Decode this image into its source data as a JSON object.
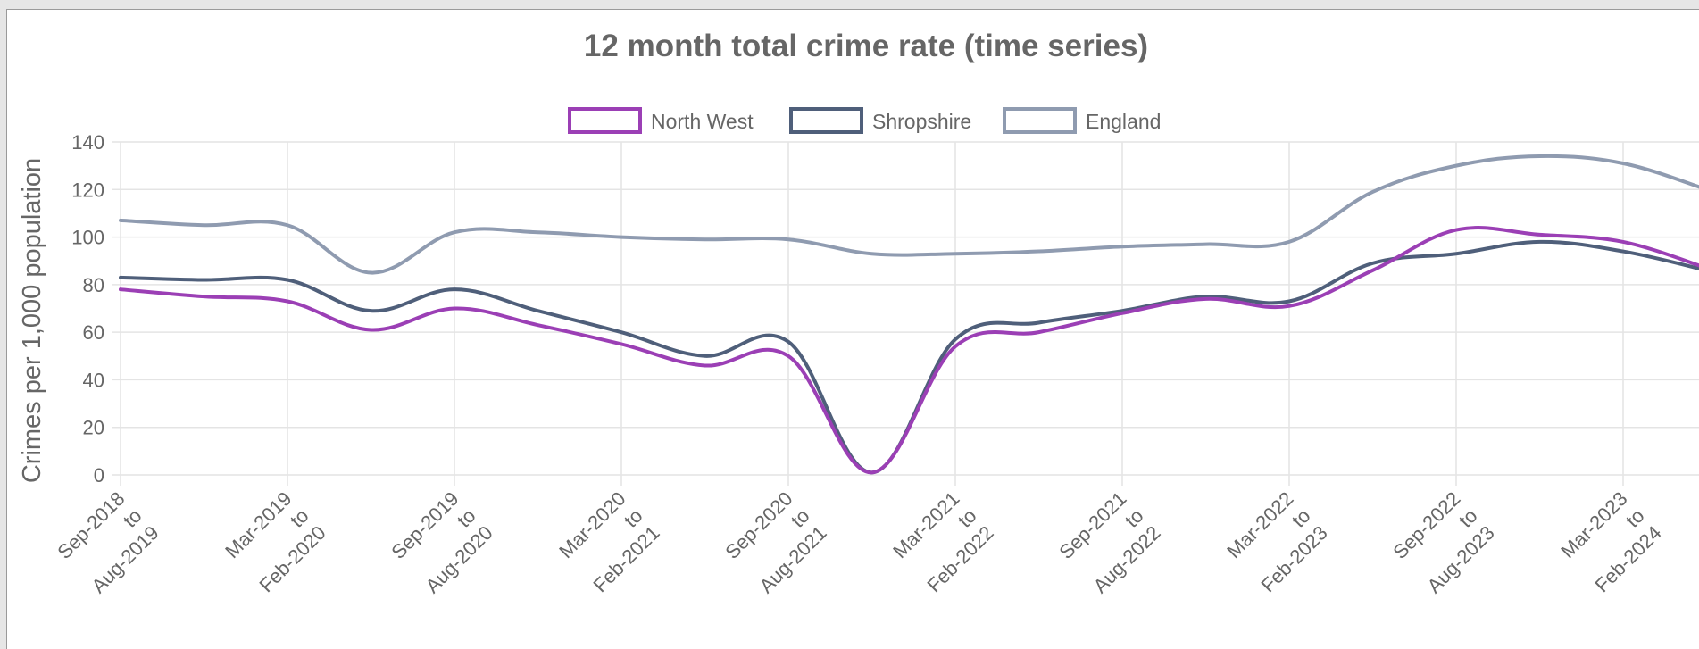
{
  "chart_data": {
    "type": "line",
    "title": "12 month total crime rate (time series)",
    "ylabel": "Crimes per 1,000 population",
    "xlabel": "",
    "ylim": [
      0,
      140
    ],
    "yticks": [
      0,
      20,
      40,
      60,
      80,
      100,
      120,
      140
    ],
    "grid": true,
    "legend_position": "top-center",
    "x_tick_labels": [
      [
        "Sep-2018",
        "to",
        "Aug-2019"
      ],
      [
        "Mar-2019",
        "to",
        "Feb-2020"
      ],
      [
        "Sep-2019",
        "to",
        "Aug-2020"
      ],
      [
        "Mar-2020",
        "to",
        "Feb-2021"
      ],
      [
        "Sep-2020",
        "to",
        "Aug-2021"
      ],
      [
        "Mar-2021",
        "to",
        "Feb-2022"
      ],
      [
        "Sep-2021",
        "to",
        "Aug-2022"
      ],
      [
        "Mar-2022",
        "to",
        "Feb-2023"
      ],
      [
        "Sep-2022",
        "to",
        "Aug-2023"
      ],
      [
        "Mar-2023",
        "to",
        "Feb-2024"
      ]
    ],
    "series": [
      {
        "name": "North West",
        "color": "#9b3fb5",
        "values": [
          78,
          75,
          73,
          61,
          70,
          63,
          55,
          46,
          50,
          1,
          54,
          60,
          68,
          74,
          71,
          86,
          103,
          101,
          98,
          87
        ]
      },
      {
        "name": "Shropshire",
        "color": "#4f5f7a",
        "values": [
          83,
          82,
          82,
          69,
          78,
          69,
          60,
          50,
          56,
          1,
          57,
          64,
          69,
          75,
          73,
          89,
          93,
          98,
          94,
          86
        ]
      },
      {
        "name": "England",
        "color": "#8f9bb0",
        "values": [
          107,
          105,
          105,
          85,
          102,
          102,
          100,
          99,
          99,
          93,
          93,
          94,
          96,
          97,
          98,
          119,
          130,
          134,
          131,
          120
        ]
      }
    ]
  }
}
